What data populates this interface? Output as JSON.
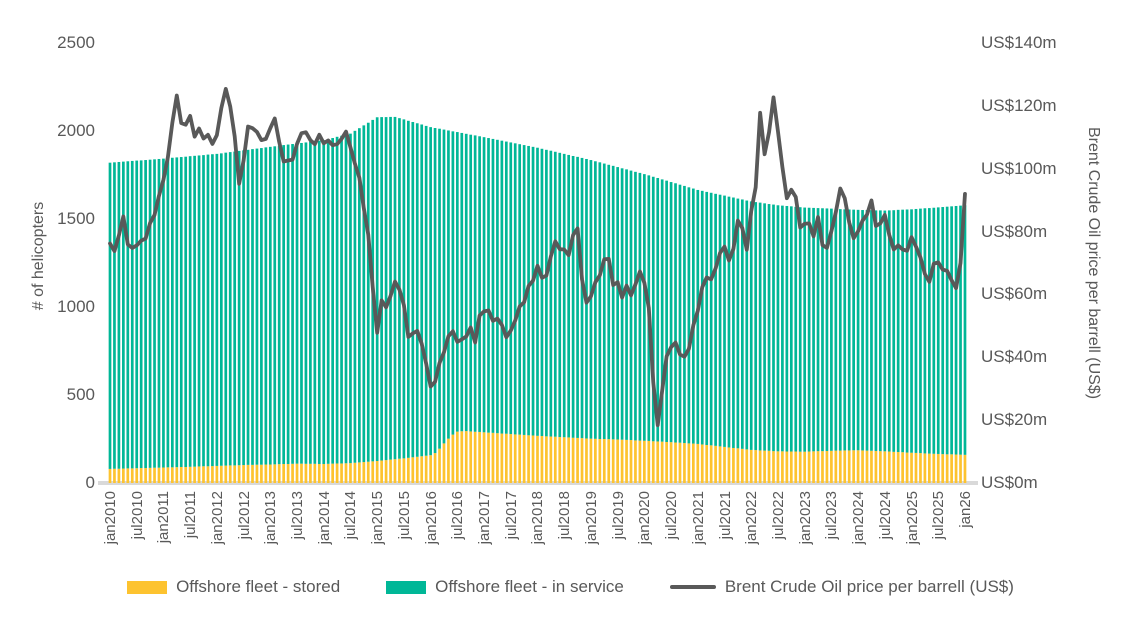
{
  "page": {
    "background": "#FFFFFF"
  },
  "colors": {
    "stored": "#FDC32F",
    "in_service": "#00B797",
    "brent_line": "#595959",
    "axis_text": "#595959",
    "baseline": "#D9D9D9"
  },
  "axes": {
    "left": {
      "title": "# of helicopters",
      "tick_labels": [
        "2500",
        "2000",
        "1500",
        "1000",
        "500",
        "0"
      ],
      "tick_values": [
        2500,
        2000,
        1500,
        1000,
        500,
        0
      ]
    },
    "right": {
      "title": "Brent Crude Oil price per barrell (US$)",
      "tick_labels": [
        "US$140m",
        "US$120m",
        "US$100m",
        "US$80m",
        "US$60m",
        "US$40m",
        "US$20m",
        "US$0m"
      ],
      "tick_values": [
        140,
        120,
        100,
        80,
        60,
        40,
        20,
        0
      ]
    },
    "x": {
      "tick_labels": [
        "jan2010",
        "jul2010",
        "jan2011",
        "jul2011",
        "jan2012",
        "jul2012",
        "jan2013",
        "jul2013",
        "jan2014",
        "jul2014",
        "jan2015",
        "jul2015",
        "jan2016",
        "jul2016",
        "jan2017",
        "jul2017",
        "jan2018",
        "jul2018",
        "jan2019",
        "jul2019",
        "jan2020",
        "jul2020",
        "jan2021",
        "jul2021",
        "jan2022",
        "jul2022",
        "jan2023",
        "jul2023",
        "jan2024",
        "jul2024",
        "jan2025",
        "jul2025",
        "jan26"
      ],
      "tick_every_n_months": 6
    }
  },
  "legend": {
    "items": [
      {
        "label": "Offshore fleet - stored",
        "color": "#FDC32F",
        "swatch": "box"
      },
      {
        "label": "Offshore fleet - in service",
        "color": "#00B797",
        "swatch": "box"
      },
      {
        "label": "Brent Crude Oil price per barrell (US$)",
        "color": "#595959",
        "swatch": "line"
      }
    ]
  },
  "chart_data": {
    "type": "bar",
    "subtype": "stacked-bar-with-line-overlay",
    "frequency": "monthly",
    "start_month": "jan2010",
    "end_month": "jan2026",
    "n_points": 193,
    "left_ylim": [
      0,
      2500
    ],
    "right_ylim": [
      0,
      140
    ],
    "grid": false,
    "legend_position": "bottom",
    "series": [
      {
        "name": "Offshore fleet - stored",
        "type": "bar",
        "stack": "fleet",
        "axis": "left",
        "color": "#FDC32F",
        "values": [
          80,
          81,
          81,
          82,
          83,
          83,
          84,
          85,
          85,
          86,
          87,
          87,
          88,
          89,
          89,
          90,
          91,
          91,
          92,
          93,
          94,
          95,
          95,
          96,
          97,
          98,
          99,
          100,
          100,
          101,
          102,
          103,
          103,
          104,
          104,
          105,
          105,
          106,
          107,
          108,
          108,
          109,
          110,
          110,
          109,
          109,
          109,
          108,
          108,
          109,
          110,
          111,
          111,
          112,
          113,
          115,
          117,
          119,
          121,
          123,
          125,
          128,
          130,
          133,
          135,
          138,
          140,
          143,
          146,
          149,
          152,
          155,
          158,
          170,
          195,
          225,
          252,
          275,
          292,
          294,
          295,
          293,
          291,
          290,
          288,
          286,
          285,
          283,
          281,
          280,
          278,
          276,
          275,
          273,
          271,
          270,
          268,
          267,
          265,
          264,
          263,
          261,
          260,
          259,
          257,
          256,
          255,
          253,
          252,
          251,
          250,
          250,
          249,
          248,
          247,
          246,
          245,
          244,
          242,
          241,
          240,
          239,
          237,
          236,
          235,
          233,
          232,
          230,
          229,
          227,
          225,
          224,
          222,
          219,
          216,
          214,
          211,
          208,
          205,
          202,
          199,
          197,
          194,
          191,
          188,
          187,
          185,
          184,
          183,
          181,
          180,
          180,
          179,
          179,
          179,
          178,
          178,
          179,
          180,
          181,
          181,
          182,
          183,
          184,
          184,
          185,
          185,
          186,
          186,
          185,
          184,
          183,
          182,
          181,
          180,
          179,
          177,
          176,
          175,
          173,
          172,
          171,
          170,
          168,
          167,
          166,
          165,
          164,
          163,
          163,
          162,
          161,
          160
        ]
      },
      {
        "name": "Offshore fleet - in service",
        "type": "bar",
        "stack": "fleet",
        "axis": "left",
        "color": "#00B797",
        "values": [
          1740,
          1741,
          1743,
          1744,
          1745,
          1747,
          1748,
          1748,
          1750,
          1751,
          1752,
          1754,
          1755,
          1756,
          1759,
          1760,
          1761,
          1763,
          1765,
          1766,
          1767,
          1768,
          1771,
          1772,
          1773,
          1775,
          1778,
          1780,
          1783,
          1786,
          1788,
          1790,
          1794,
          1796,
          1799,
          1802,
          1805,
          1807,
          1809,
          1812,
          1815,
          1817,
          1819,
          1822,
          1826,
          1830,
          1833,
          1837,
          1840,
          1845,
          1850,
          1856,
          1862,
          1867,
          1872,
          1886,
          1899,
          1913,
          1926,
          1940,
          1953,
          1951,
          1949,
          1947,
          1945,
          1935,
          1926,
          1915,
          1905,
          1895,
          1885,
          1874,
          1864,
          1847,
          1818,
          1783,
          1751,
          1723,
          1702,
          1695,
          1689,
          1686,
          1684,
          1680,
          1677,
          1674,
          1670,
          1667,
          1664,
          1660,
          1657,
          1654,
          1650,
          1647,
          1644,
          1640,
          1637,
          1632,
          1628,
          1624,
          1619,
          1615,
          1610,
          1605,
          1601,
          1597,
          1592,
          1588,
          1583,
          1577,
          1572,
          1565,
          1559,
          1554,
          1548,
          1542,
          1537,
          1531,
          1526,
          1521,
          1515,
          1509,
          1503,
          1497,
          1490,
          1485,
          1478,
          1473,
          1466,
          1461,
          1455,
          1449,
          1443,
          1441,
          1438,
          1435,
          1432,
          1430,
          1428,
          1425,
          1423,
          1419,
          1417,
          1414,
          1412,
          1409,
          1408,
          1405,
          1402,
          1401,
          1398,
          1396,
          1395,
          1393,
          1390,
          1389,
          1387,
          1385,
          1383,
          1381,
          1380,
          1378,
          1376,
          1373,
          1372,
          1370,
          1369,
          1367,
          1366,
          1366,
          1367,
          1367,
          1367,
          1368,
          1368,
          1370,
          1373,
          1376,
          1378,
          1381,
          1383,
          1386,
          1389,
          1393,
          1395,
          1398,
          1401,
          1404,
          1407,
          1409,
          1412,
          1415,
          1418
        ]
      },
      {
        "name": "Brent Crude Oil price per barrell (US$)",
        "type": "line",
        "axis": "right",
        "color": "#595959",
        "values": [
          76.2,
          73.8,
          78.8,
          84.8,
          75.9,
          74.8,
          75.6,
          77.1,
          77.8,
          82.7,
          85.3,
          91.4,
          96.5,
          103.7,
          114.6,
          123.3,
          114.5,
          114.0,
          116.8,
          110.2,
          112.8,
          109.6,
          110.8,
          107.9,
          110.7,
          119.3,
          125.4,
          119.8,
          110.3,
          95.2,
          102.6,
          113.4,
          112.9,
          111.7,
          109.1,
          109.5,
          112.9,
          116.0,
          108.5,
          102.3,
          102.6,
          102.9,
          107.9,
          111.3,
          111.6,
          109.1,
          107.8,
          110.8,
          108.1,
          109.0,
          107.5,
          107.8,
          109.5,
          111.8,
          106.8,
          101.6,
          97.1,
          87.4,
          79.0,
          62.3,
          47.8,
          58.1,
          55.9,
          59.5,
          64.1,
          61.5,
          56.6,
          46.5,
          47.6,
          48.4,
          44.3,
          38.0,
          30.7,
          32.2,
          38.2,
          41.6,
          46.7,
          48.3,
          44.9,
          45.7,
          46.6,
          49.5,
          44.7,
          53.3,
          54.6,
          54.9,
          51.6,
          52.3,
          50.3,
          46.4,
          48.5,
          51.7,
          56.2,
          57.5,
          62.7,
          64.4,
          69.1,
          65.3,
          66.0,
          72.1,
          76.9,
          74.4,
          74.3,
          72.5,
          78.9,
          81.0,
          64.8,
          57.4,
          59.4,
          63.9,
          66.1,
          71.2,
          71.3,
          63.0,
          63.9,
          59.0,
          62.8,
          59.7,
          63.2,
          67.3,
          63.7,
          55.7,
          32.0,
          18.4,
          29.4,
          40.3,
          43.2,
          44.7,
          40.9,
          40.2,
          42.7,
          50.2,
          54.8,
          62.3,
          65.4,
          64.8,
          68.3,
          73.2,
          75.2,
          70.8,
          74.5,
          83.5,
          81.1,
          74.2,
          86.5,
          94.1,
          117.8,
          104.6,
          111.6,
          122.7,
          111.9,
          100.5,
          90.6,
          93.3,
          91.0,
          81.3,
          82.5,
          82.6,
          78.5,
          84.6,
          75.7,
          74.8,
          80.1,
          86.2,
          93.7,
          90.6,
          82.9,
          77.9,
          80.1,
          83.5,
          85.4,
          89.9,
          81.8,
          82.6,
          85.3,
          78.9,
          74.3,
          75.6,
          74.3,
          73.9,
          78.2,
          75.2,
          71.8,
          66.5,
          64.0,
          69.8,
          70.2,
          67.9,
          67.5,
          64.5,
          62.0,
          70.0,
          92.0
        ]
      }
    ]
  }
}
